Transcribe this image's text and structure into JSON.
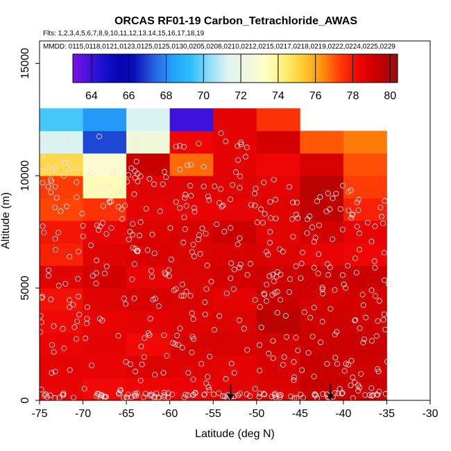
{
  "chart_data": {
    "type": "heatmap",
    "title": "ORCAS RF01-19 Carbon_Tetrachloride_AWAS",
    "flights_label": "Flts: 1,2,3,4,5,6,7,8,9,10,11,12,13,14,15,16,17,18,19",
    "dates_label": "MMDD: 0115,0118,0121,0123,0125,0125,0130,0205,0208,0210,0212,0215,0217,0218,0219,0222,0224,0225,0229",
    "xlabel": "Latitude (deg N)",
    "ylabel": "Altitude (m)",
    "xlim": [
      -75,
      -30
    ],
    "ylim": [
      0,
      16000
    ],
    "x_ticks": [
      -75,
      -70,
      -65,
      -60,
      -55,
      -50,
      -45,
      -40,
      -35,
      -30
    ],
    "x_tick_labels": [
      "-75",
      "-70",
      "-65",
      "-60",
      "-55",
      "-50",
      "-45",
      "-40",
      "-35",
      "-30"
    ],
    "y_ticks": [
      0,
      5000,
      10000,
      15000
    ],
    "y_tick_labels": [
      "0",
      "5000",
      "10000",
      "15000"
    ],
    "colorbar": {
      "range": [
        63,
        80.4
      ],
      "ticks": [
        64,
        66,
        68,
        70,
        72,
        74,
        76,
        78,
        80
      ],
      "tick_labels": [
        "64",
        "66",
        "68",
        "70",
        "72",
        "74",
        "76",
        "78",
        "80"
      ]
    },
    "cell_width_deg": 5,
    "cell_height_m": 1000,
    "cell_lat_start": -75,
    "cell_values": [
      [
        78.5,
        78.2,
        78.3,
        78.4,
        78.6,
        78.8,
        79.3,
        79.2
      ],
      [
        78.6,
        78.5,
        78.8,
        78.7,
        78.6,
        78.9,
        79.3,
        79.1
      ],
      [
        78.4,
        78.6,
        78.2,
        78.9,
        78.9,
        79.0,
        79.2,
        79.2
      ],
      [
        78.2,
        78.5,
        78.6,
        78.7,
        78.8,
        79.6,
        79.1,
        79.1
      ],
      [
        78.1,
        78.7,
        78.9,
        78.8,
        78.6,
        79.3,
        79.0,
        79.0
      ],
      [
        78.7,
        79.0,
        78.5,
        78.8,
        79.0,
        79.1,
        79.2,
        79.2
      ],
      [
        77.8,
        78.7,
        78.9,
        78.8,
        78.9,
        78.8,
        78.5,
        78.3
      ],
      [
        78.0,
        78.5,
        78.8,
        78.9,
        79.2,
        78.6,
        79.0,
        78.5
      ],
      [
        77.2,
        77.5,
        78.6,
        78.5,
        78.5,
        78.7,
        79.5,
        77.8
      ],
      [
        77.3,
        73.5,
        78.7,
        78.7,
        78.7,
        78.6,
        79.6,
        77.3
      ],
      [
        75.0,
        73.0,
        79.3,
        76.8,
        78.6,
        78.3,
        78.9,
        77.1
      ],
      [
        71.2,
        67.0,
        72.5,
        78.3,
        78.6,
        79.0,
        77.0,
        76.6
      ],
      [
        69.6,
        68.2,
        71.2,
        64.0,
        78.6,
        77.5,
        null,
        null
      ]
    ],
    "markers": [
      {
        "label": "down-arrow",
        "lat": -53
      },
      {
        "label": "down-arrow",
        "lat": -41.5
      }
    ]
  }
}
